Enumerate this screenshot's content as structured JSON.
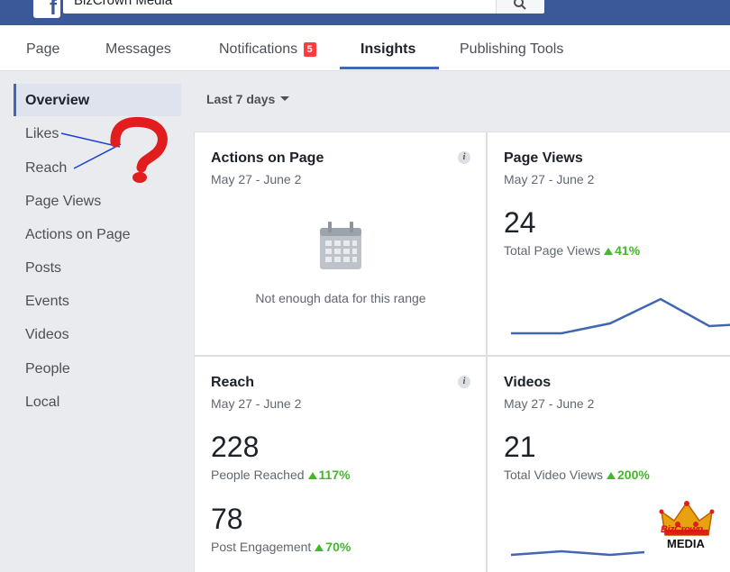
{
  "topbar": {
    "search_value": "BizCrown Media",
    "logo_letter": "f",
    "brand_color": "#3b5998"
  },
  "tabs": [
    {
      "label": "Page"
    },
    {
      "label": "Messages"
    },
    {
      "label": "Notifications",
      "badge": "5"
    },
    {
      "label": "Insights",
      "active": true
    },
    {
      "label": "Publishing Tools"
    }
  ],
  "sidebar": {
    "items": [
      {
        "label": "Overview",
        "active": true
      },
      {
        "label": "Likes"
      },
      {
        "label": "Reach"
      },
      {
        "label": "Page Views"
      },
      {
        "label": "Actions on Page"
      },
      {
        "label": "Posts"
      },
      {
        "label": "Events"
      },
      {
        "label": "Videos"
      },
      {
        "label": "People"
      },
      {
        "label": "Local"
      }
    ]
  },
  "range": {
    "label": "Last 7 days"
  },
  "cards": {
    "actions": {
      "title": "Actions on Page",
      "date": "May 27 - June 2",
      "info": "i",
      "empty_text": "Not enough data for this range"
    },
    "pageviews": {
      "title": "Page Views",
      "date": "May 27 - June 2",
      "value": "24",
      "label": "Total Page Views",
      "change": "41%"
    },
    "reach": {
      "title": "Reach",
      "date": "May 27 - June 2",
      "info": "i",
      "value": "228",
      "label": "People Reached",
      "change": "117%",
      "value2": "78",
      "label2": "Post Engagement",
      "change2": "70%"
    },
    "videos": {
      "title": "Videos",
      "date": "May 27 - June 2",
      "value": "21",
      "label": "Total Video Views",
      "change": "200%"
    }
  },
  "watermark": {
    "line1": "BizCrown",
    "line2": "MEDIA"
  },
  "colors": {
    "accent": "#4267b2",
    "positive": "#42b72a",
    "badge": "#fa3e3e",
    "annotation": "#e11d1d"
  },
  "icons": [
    "search-icon",
    "info-icon",
    "calendar-icon",
    "caret-down-icon",
    "up-arrow-icon",
    "question-mark-icon",
    "crown-icon"
  ]
}
